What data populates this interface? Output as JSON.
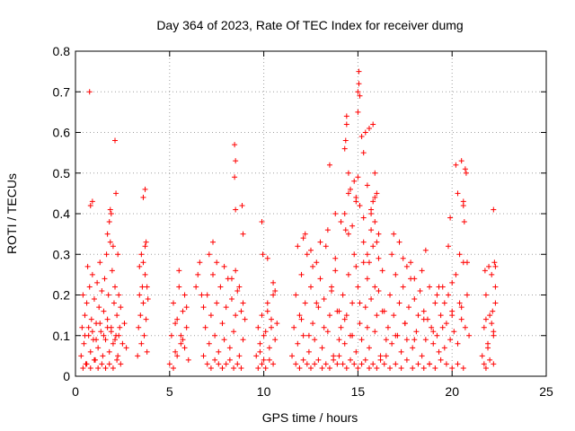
{
  "chart_data": {
    "type": "scatter",
    "title": "Day 364 of 2023, Rate Of TEC Index for receiver dumg",
    "xlabel": "GPS time / hours",
    "ylabel": "ROTI / TECUs",
    "xlim": [
      0,
      25
    ],
    "ylim": [
      0,
      0.8
    ],
    "xticks": [
      0,
      5,
      10,
      15,
      20,
      25
    ],
    "yticks": [
      0,
      0.1,
      0.2,
      0.3,
      0.4,
      0.5,
      0.6,
      0.7,
      0.8
    ],
    "xtick_labels": [
      "0",
      "5",
      "10",
      "15",
      "20",
      "25"
    ],
    "ytick_labels": [
      "0",
      "0.1",
      "0.2",
      "0.3",
      "0.4",
      "0.5",
      "0.6",
      "0.7",
      "0.8"
    ],
    "grid": true,
    "marker": "plus",
    "color": "#ff0000",
    "series": [
      {
        "x": [
          0.3,
          0.35,
          0.4,
          0.45,
          0.5,
          0.55,
          0.6,
          0.65,
          0.7,
          0.75,
          0.8,
          0.85,
          0.9,
          0.95,
          1.0,
          1.05,
          1.1,
          1.15,
          1.2,
          1.25,
          1.3,
          1.35,
          1.4,
          1.45,
          1.5,
          1.55,
          1.6,
          1.65,
          1.7,
          1.75,
          1.8,
          1.85,
          1.9,
          1.95,
          2.0,
          2.05,
          2.1,
          2.15,
          2.2,
          2.25,
          2.3,
          2.35,
          2.4,
          2.5,
          2.6,
          2.7,
          0.4,
          0.6,
          0.8,
          1.0,
          1.2,
          1.4,
          1.6,
          1.8,
          2.0,
          2.2,
          2.4,
          0.5,
          0.7,
          0.9,
          1.1,
          1.3,
          1.5,
          1.7,
          1.9,
          2.1,
          2.3,
          0.75,
          0.8,
          0.9,
          1.7,
          1.8,
          1.85,
          1.9,
          2.0,
          2.1,
          2.15,
          2.25,
          3.3,
          3.35,
          3.4,
          3.45,
          3.5,
          3.55,
          3.6,
          3.65,
          3.7,
          3.75,
          3.8,
          3.85,
          3.4,
          3.5,
          3.6,
          3.7,
          3.8,
          3.6,
          3.7,
          3.75,
          5.0,
          5.1,
          5.2,
          5.3,
          5.4,
          5.5,
          5.6,
          5.7,
          5.8,
          5.9,
          6.0,
          5.2,
          5.4,
          5.6,
          5.8,
          5.3,
          5.7,
          5.5,
          5.9,
          6.4,
          6.5,
          6.6,
          6.7,
          6.8,
          6.8,
          6.9,
          7.0,
          7.1,
          7.2,
          7.3,
          7.4,
          7.5,
          7.6,
          7.7,
          7.8,
          7.9,
          8.0,
          8.1,
          8.2,
          8.3,
          8.4,
          8.5,
          8.6,
          8.7,
          8.8,
          8.9,
          9.0,
          7.0,
          7.2,
          7.4,
          7.6,
          7.8,
          8.0,
          8.2,
          8.4,
          8.6,
          8.8,
          7.1,
          7.3,
          7.5,
          7.9,
          8.3,
          8.5,
          8.7,
          8.9,
          8.45,
          8.5,
          8.45,
          8.5,
          8.85,
          8.9,
          9.6,
          9.7,
          9.8,
          9.9,
          10.0,
          10.1,
          10.2,
          10.3,
          10.4,
          10.5,
          10.6,
          10.7,
          9.7,
          9.9,
          10.1,
          10.3,
          10.5,
          9.8,
          10.0,
          10.2,
          10.4,
          10.6,
          9.9,
          10.2,
          10.5,
          9.95,
          11.5,
          11.6,
          11.7,
          11.8,
          11.9,
          12.0,
          12.1,
          12.2,
          12.3,
          12.4,
          12.5,
          12.6,
          12.7,
          12.8,
          12.9,
          13.0,
          13.1,
          13.2,
          13.3,
          13.4,
          13.5,
          13.6,
          13.7,
          13.8,
          13.9,
          14.0,
          11.7,
          11.9,
          12.1,
          12.3,
          12.5,
          12.7,
          12.9,
          13.1,
          13.3,
          13.5,
          13.7,
          13.9,
          12.0,
          12.4,
          12.8,
          13.2,
          13.6,
          14.0,
          12.2,
          12.6,
          13.0,
          13.4,
          13.8,
          11.8,
          12.1,
          12.5,
          13.5,
          13.8,
          14.0,
          14.1,
          14.2,
          14.3,
          14.4,
          14.5,
          14.6,
          14.7,
          14.8,
          14.9,
          15.0,
          15.1,
          15.2,
          15.3,
          15.4,
          15.5,
          15.6,
          15.7,
          15.8,
          15.9,
          16.0,
          16.1,
          16.2,
          16.3,
          16.4,
          16.5,
          14.2,
          14.4,
          14.6,
          14.8,
          15.0,
          15.2,
          15.4,
          15.6,
          15.8,
          16.0,
          16.2,
          16.4,
          14.3,
          14.7,
          15.1,
          15.5,
          15.9,
          16.3,
          14.5,
          14.9,
          15.3,
          15.7,
          16.1,
          14.1,
          14.3,
          14.5,
          14.7,
          14.9,
          15.1,
          15.3,
          15.5,
          15.7,
          15.9,
          16.1,
          14.35,
          14.4,
          14.4,
          14.35,
          14.3,
          14.5,
          14.6,
          14.8,
          14.9,
          15.0,
          15.05,
          15.05,
          15.0,
          15.1,
          15.0,
          15.2,
          15.3,
          15.4,
          15.6,
          15.8,
          15.9,
          16.0,
          15.7,
          15.8,
          15.9,
          16.0,
          15.5,
          15.6,
          16.5,
          16.6,
          16.7,
          16.8,
          16.9,
          17.0,
          17.1,
          17.2,
          17.3,
          17.4,
          17.5,
          17.6,
          17.7,
          17.8,
          17.9,
          18.0,
          18.1,
          18.2,
          18.3,
          18.4,
          18.5,
          18.6,
          18.7,
          18.8,
          18.9,
          19.0,
          19.1,
          19.2,
          19.3,
          19.4,
          19.5,
          19.6,
          19.7,
          19.8,
          19.9,
          20.0,
          20.1,
          20.2,
          20.3,
          20.4,
          20.5,
          20.6,
          20.7,
          20.8,
          20.9,
          16.7,
          17.0,
          17.3,
          17.6,
          17.9,
          18.2,
          18.5,
          18.8,
          19.1,
          19.4,
          19.7,
          20.0,
          20.3,
          20.6,
          16.8,
          17.2,
          17.6,
          18.0,
          18.4,
          18.8,
          19.2,
          19.6,
          20.0,
          20.4,
          20.8,
          17.0,
          17.5,
          18.0,
          18.5,
          19.0,
          19.5,
          20.0,
          20.5,
          16.9,
          17.4,
          17.8,
          18.6,
          19.3,
          19.9,
          20.2,
          20.5,
          20.6,
          20.7,
          20.75,
          20.3,
          19.8,
          20.6,
          20.65,
          21.6,
          21.7,
          21.8,
          21.9,
          22.0,
          22.1,
          22.2,
          22.3,
          21.7,
          21.9,
          22.1,
          22.3,
          21.8,
          22.0,
          22.2,
          21.75,
          21.95,
          22.15,
          22.25,
          22.3,
          22.2,
          21.8,
          22.2
        ],
        "y": [
          0.05,
          0.12,
          0.2,
          0.08,
          0.15,
          0.03,
          0.18,
          0.27,
          0.1,
          0.22,
          0.06,
          0.14,
          0.25,
          0.09,
          0.19,
          0.04,
          0.13,
          0.23,
          0.07,
          0.17,
          0.28,
          0.11,
          0.21,
          0.05,
          0.16,
          0.24,
          0.09,
          0.3,
          0.14,
          0.2,
          0.06,
          0.33,
          0.12,
          0.26,
          0.08,
          0.18,
          0.22,
          0.1,
          0.15,
          0.05,
          0.2,
          0.12,
          0.17,
          0.08,
          0.13,
          0.07,
          0.02,
          0.03,
          0.02,
          0.04,
          0.02,
          0.03,
          0.02,
          0.03,
          0.02,
          0.04,
          0.03,
          0.1,
          0.12,
          0.11,
          0.09,
          0.13,
          0.1,
          0.12,
          0.11,
          0.09,
          0.1,
          0.7,
          0.42,
          0.43,
          0.35,
          0.38,
          0.41,
          0.4,
          0.32,
          0.58,
          0.45,
          0.3,
          0.05,
          0.12,
          0.2,
          0.15,
          0.08,
          0.22,
          0.18,
          0.1,
          0.25,
          0.14,
          0.06,
          0.19,
          0.27,
          0.3,
          0.28,
          0.32,
          0.22,
          0.44,
          0.46,
          0.33,
          0.03,
          0.1,
          0.18,
          0.06,
          0.14,
          0.22,
          0.08,
          0.16,
          0.2,
          0.12,
          0.04,
          0.02,
          0.05,
          0.1,
          0.07,
          0.13,
          0.09,
          0.26,
          0.17,
          0.22,
          0.25,
          0.28,
          0.2,
          0.17,
          0.05,
          0.12,
          0.2,
          0.08,
          0.15,
          0.25,
          0.1,
          0.18,
          0.06,
          0.22,
          0.13,
          0.09,
          0.17,
          0.24,
          0.07,
          0.19,
          0.11,
          0.15,
          0.21,
          0.05,
          0.16,
          0.09,
          0.14,
          0.03,
          0.02,
          0.04,
          0.03,
          0.02,
          0.03,
          0.04,
          0.02,
          0.03,
          0.02,
          0.3,
          0.33,
          0.28,
          0.27,
          0.24,
          0.26,
          0.22,
          0.18,
          0.57,
          0.53,
          0.49,
          0.41,
          0.42,
          0.35,
          0.05,
          0.12,
          0.08,
          0.15,
          0.04,
          0.11,
          0.18,
          0.07,
          0.14,
          0.2,
          0.09,
          0.13,
          0.02,
          0.03,
          0.02,
          0.04,
          0.03,
          0.06,
          0.1,
          0.16,
          0.12,
          0.21,
          0.38,
          0.29,
          0.23,
          0.3,
          0.05,
          0.12,
          0.2,
          0.08,
          0.15,
          0.25,
          0.1,
          0.18,
          0.3,
          0.06,
          0.22,
          0.13,
          0.09,
          0.28,
          0.17,
          0.24,
          0.07,
          0.19,
          0.32,
          0.11,
          0.15,
          0.21,
          0.05,
          0.26,
          0.16,
          0.09,
          0.03,
          0.02,
          0.04,
          0.03,
          0.02,
          0.03,
          0.04,
          0.02,
          0.03,
          0.02,
          0.04,
          0.03,
          0.14,
          0.1,
          0.18,
          0.12,
          0.22,
          0.16,
          0.35,
          0.27,
          0.33,
          0.36,
          0.29,
          0.32,
          0.34,
          0.31,
          0.52,
          0.4,
          0.05,
          0.12,
          0.2,
          0.08,
          0.15,
          0.25,
          0.1,
          0.18,
          0.3,
          0.06,
          0.22,
          0.13,
          0.09,
          0.28,
          0.17,
          0.24,
          0.07,
          0.19,
          0.32,
          0.11,
          0.15,
          0.21,
          0.05,
          0.26,
          0.16,
          0.09,
          0.03,
          0.02,
          0.04,
          0.03,
          0.02,
          0.03,
          0.04,
          0.02,
          0.03,
          0.02,
          0.04,
          0.03,
          0.14,
          0.1,
          0.18,
          0.12,
          0.22,
          0.16,
          0.35,
          0.27,
          0.33,
          0.36,
          0.29,
          0.38,
          0.4,
          0.45,
          0.37,
          0.43,
          0.42,
          0.39,
          0.47,
          0.41,
          0.44,
          0.35,
          0.36,
          0.64,
          0.62,
          0.58,
          0.56,
          0.5,
          0.46,
          0.48,
          0.44,
          0.49,
          0.75,
          0.72,
          0.7,
          0.69,
          0.65,
          0.59,
          0.55,
          0.6,
          0.61,
          0.62,
          0.5,
          0.45,
          0.4,
          0.43,
          0.38,
          0.33,
          0.3,
          0.28,
          0.05,
          0.12,
          0.2,
          0.08,
          0.15,
          0.25,
          0.1,
          0.18,
          0.06,
          0.22,
          0.13,
          0.09,
          0.17,
          0.24,
          0.07,
          0.19,
          0.11,
          0.15,
          0.21,
          0.05,
          0.16,
          0.09,
          0.14,
          0.03,
          0.12,
          0.08,
          0.18,
          0.1,
          0.06,
          0.15,
          0.22,
          0.07,
          0.13,
          0.2,
          0.09,
          0.16,
          0.11,
          0.25,
          0.08,
          0.18,
          0.14,
          0.28,
          0.12,
          0.2,
          0.1,
          0.02,
          0.03,
          0.02,
          0.04,
          0.02,
          0.03,
          0.02,
          0.03,
          0.02,
          0.04,
          0.03,
          0.02,
          0.03,
          0.02,
          0.3,
          0.33,
          0.27,
          0.24,
          0.26,
          0.22,
          0.2,
          0.18,
          0.23,
          0.3,
          0.28,
          0.1,
          0.13,
          0.09,
          0.14,
          0.11,
          0.12,
          0.15,
          0.17,
          0.35,
          0.29,
          0.28,
          0.31,
          0.22,
          0.39,
          0.52,
          0.53,
          0.43,
          0.51,
          0.5,
          0.45,
          0.32,
          0.42,
          0.38,
          0.05,
          0.12,
          0.2,
          0.08,
          0.15,
          0.25,
          0.1,
          0.18,
          0.03,
          0.07,
          0.13,
          0.22,
          0.02,
          0.04,
          0.03,
          0.26,
          0.27,
          0.16,
          0.28,
          0.27,
          0.11,
          0.14,
          0.41
        ]
      }
    ]
  }
}
